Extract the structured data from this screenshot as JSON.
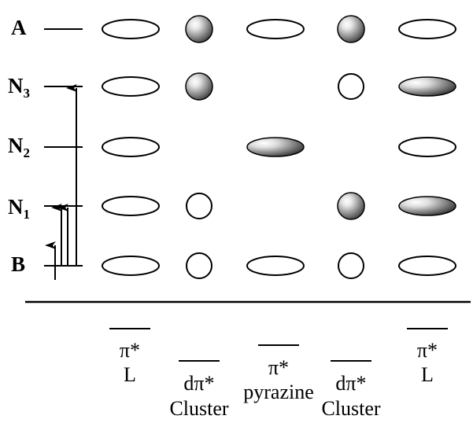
{
  "states": [
    {
      "id": "A",
      "letter": "A",
      "subscript": ""
    },
    {
      "id": "N3",
      "letter": "N",
      "subscript": "3"
    },
    {
      "id": "N2",
      "letter": "N",
      "subscript": "2"
    },
    {
      "id": "N1",
      "letter": "N",
      "subscript": "1"
    },
    {
      "id": "B",
      "letter": "B",
      "subscript": ""
    }
  ],
  "columns": [
    {
      "id": "col1",
      "symbol": "π*",
      "name": "L"
    },
    {
      "id": "col2",
      "symbol": "dπ*",
      "name": "Cluster"
    },
    {
      "id": "col3",
      "symbol": "π*",
      "name": "pyrazine"
    },
    {
      "id": "col4",
      "symbol": "dπ*",
      "name": "Cluster"
    },
    {
      "id": "col5",
      "symbol": "π*",
      "name": "L"
    }
  ],
  "orbitals": {
    "A": [
      "ellipse-empty",
      "sphere-filled",
      "ellipse-empty",
      "sphere-filled",
      "ellipse-empty"
    ],
    "N3": [
      "ellipse-empty",
      "sphere-filled",
      "none",
      "circle-empty",
      "ellipse-filled"
    ],
    "N2": [
      "ellipse-empty",
      "none",
      "ellipse-filled",
      "none",
      "ellipse-empty"
    ],
    "N1": [
      "ellipse-empty",
      "circle-empty",
      "none",
      "sphere-filled",
      "ellipse-filled"
    ],
    "B": [
      "ellipse-empty",
      "circle-empty",
      "ellipse-empty",
      "circle-empty",
      "ellipse-empty"
    ]
  },
  "transitions": [
    {
      "from": "B",
      "to": "N3"
    },
    {
      "from": "B",
      "to": "N1"
    },
    {
      "from": "B",
      "to": "N1"
    },
    {
      "from": "B",
      "to": "B",
      "label": "short-arrow"
    }
  ]
}
